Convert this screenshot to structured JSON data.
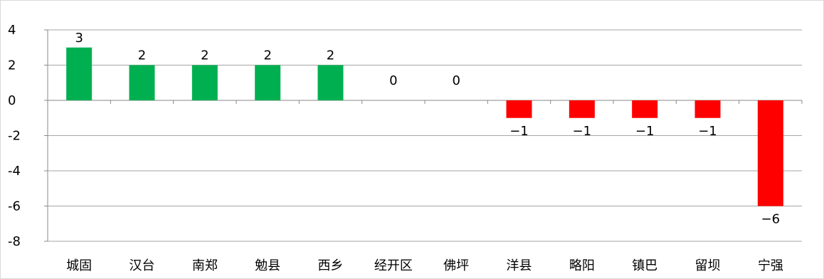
{
  "chart_data": {
    "type": "bar",
    "title": "",
    "xlabel": "",
    "ylabel": "",
    "categories": [
      "城固",
      "汉台",
      "南郑",
      "勉县",
      "西乡",
      "经开区",
      "佛坪",
      "洋县",
      "略阳",
      "镇巴",
      "留坝",
      "宁强"
    ],
    "values": [
      3,
      2,
      2,
      2,
      2,
      0,
      0,
      -1,
      -1,
      -1,
      -1,
      -6
    ],
    "ylim": [
      -8,
      4
    ],
    "yticks": [
      4,
      2,
      0,
      -2,
      -4,
      -6,
      -8
    ],
    "grid": true,
    "legend": "none",
    "colors": {
      "positive": "#00b050",
      "negative": "#ff0000",
      "grid": "#a6a6a6",
      "axis": "#888888"
    }
  }
}
